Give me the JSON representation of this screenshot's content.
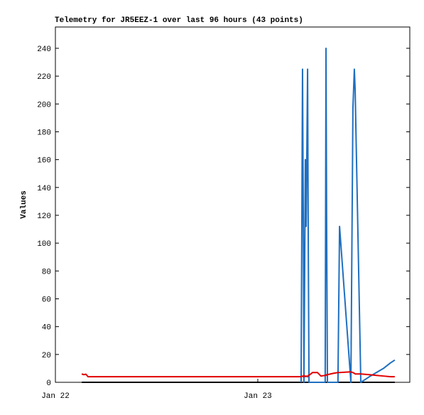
{
  "chart_data": {
    "type": "line",
    "title": "Telemetry for JR5EEZ-1 over last 96 hours (43 points)",
    "y_label": "Values",
    "x": [
      22.13,
      22.14,
      22.151,
      22.161,
      22.253,
      22.428,
      22.604,
      22.779,
      22.954,
      23.13,
      23.165,
      23.182,
      23.2,
      23.207,
      23.214,
      23.221,
      23.225,
      23.228,
      23.235,
      23.239,
      23.246,
      23.249,
      23.253,
      23.27,
      23.295,
      23.312,
      23.333,
      23.337,
      23.34,
      23.344,
      23.375,
      23.396,
      23.404,
      23.46,
      23.47,
      23.477,
      23.481,
      23.509,
      23.551,
      23.586,
      23.621,
      23.656,
      23.677
    ],
    "series": [
      {
        "color": "#000000",
        "values": [
          0,
          0,
          0,
          0,
          0,
          0,
          0,
          0,
          0,
          0,
          0,
          0,
          0,
          0,
          0,
          0,
          0,
          0,
          0,
          0,
          0,
          0,
          0,
          0,
          0,
          0,
          0,
          0,
          0,
          0,
          0,
          0,
          0,
          0,
          0,
          0,
          0,
          0,
          0,
          0,
          0,
          0,
          0
        ]
      },
      {
        "color": "#1f6fc0",
        "values": [
          null,
          null,
          null,
          null,
          null,
          null,
          null,
          null,
          null,
          null,
          null,
          null,
          null,
          null,
          0,
          225,
          112,
          0,
          160,
          112,
          225,
          112,
          0,
          0,
          0,
          0,
          0,
          240,
          120,
          0,
          0,
          0,
          112,
          0,
          197,
          225,
          210,
          0,
          4,
          7,
          10,
          14,
          16
        ]
      },
      {
        "color": "#e00000",
        "values": [
          6,
          5.5,
          5.8,
          4,
          4,
          4,
          4,
          4,
          4,
          4,
          4,
          4,
          4,
          4,
          4,
          4.5,
          4,
          5,
          4,
          4.5,
          4,
          5,
          5,
          7,
          7,
          4.5,
          5,
          5,
          5.5,
          5.5,
          6.5,
          7,
          7,
          7.5,
          7,
          6.5,
          6,
          6,
          5.5,
          5,
          4.5,
          4,
          4
        ]
      }
    ],
    "xlim": [
      22,
      23.751
    ],
    "xticks": [
      {
        "value": 22,
        "label": "Jan 22"
      },
      {
        "value": 23,
        "label": "Jan 23"
      }
    ],
    "ylim": [
      0,
      255.3
    ],
    "yticks": [
      0,
      20,
      40,
      60,
      80,
      100,
      120,
      140,
      160,
      180,
      200,
      220,
      240
    ]
  }
}
